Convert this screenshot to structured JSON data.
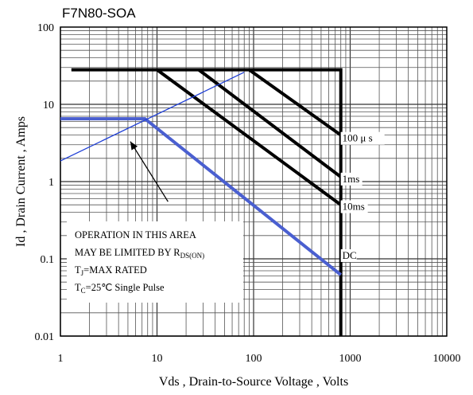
{
  "chart_data": {
    "type": "line",
    "title": "F7N80-SOA",
    "xlabel": "Vds , Drain-to-Source Voltage , Volts",
    "ylabel": "Id , Drain Current , Amps",
    "xscale": "log",
    "yscale": "log",
    "xlim": [
      1,
      10000
    ],
    "ylim": [
      0.01,
      100
    ],
    "grid": true,
    "x_ticks": [
      {
        "value": 1,
        "label": "1"
      },
      {
        "value": 10,
        "label": "10"
      },
      {
        "value": 100,
        "label": "100"
      },
      {
        "value": 1000,
        "label": "1000"
      },
      {
        "value": 10000,
        "label": "10000"
      }
    ],
    "y_ticks": [
      {
        "value": 0.01,
        "label": "0.01"
      },
      {
        "value": 0.1,
        "label": "0.1"
      },
      {
        "value": 1,
        "label": "1"
      },
      {
        "value": 10,
        "label": "10"
      },
      {
        "value": 100,
        "label": "100"
      }
    ],
    "series": [
      {
        "label": "",
        "color": "#000000",
        "width": 4,
        "points": [
          [
            1.3,
            28
          ],
          [
            800,
            28
          ],
          [
            800,
            0.01
          ]
        ]
      },
      {
        "label": "100 μ s",
        "color": "#000000",
        "width": 4,
        "points": [
          [
            90,
            28
          ],
          [
            800,
            4
          ]
        ]
      },
      {
        "label": "1ms",
        "color": "#000000",
        "width": 4,
        "points": [
          [
            27,
            28
          ],
          [
            800,
            1.15
          ]
        ]
      },
      {
        "label": "10ms",
        "color": "#000000",
        "width": 4,
        "points": [
          [
            10,
            28
          ],
          [
            800,
            0.5
          ]
        ]
      },
      {
        "label": "DC",
        "color": "#4a5fd0",
        "width": 4,
        "points": [
          [
            1,
            6.5
          ],
          [
            7.5,
            6.5
          ],
          [
            800,
            0.062
          ]
        ]
      },
      {
        "label": "",
        "color": "#1f3fd6",
        "width": 1.3,
        "points": [
          [
            1,
            1.85
          ],
          [
            80,
            26
          ]
        ]
      }
    ],
    "curve_labels": [
      {
        "text": "100 μ s",
        "x": 830,
        "y": 3.3
      },
      {
        "text": "1ms",
        "x": 830,
        "y": 0.98
      },
      {
        "text": "10ms",
        "x": 830,
        "y": 0.43
      },
      {
        "text": "DC",
        "x": 830,
        "y": 0.1
      }
    ],
    "annotation": {
      "lines": [
        {
          "main": "OPERATION IN THIS AREA",
          "sub": "",
          "tail": ""
        },
        {
          "main": "MAY BE LIMITED BY R",
          "sub": "DS(ON)",
          "tail": ""
        },
        {
          "main": "T",
          "sub": "J",
          "tail": "=MAX RATED"
        },
        {
          "main": "T",
          "sub": "C",
          "tail": "=25℃  Single Pulse"
        }
      ],
      "arrow_from": [
        13,
        0.55
      ],
      "arrow_to": [
        5.3,
        3.3
      ]
    }
  }
}
